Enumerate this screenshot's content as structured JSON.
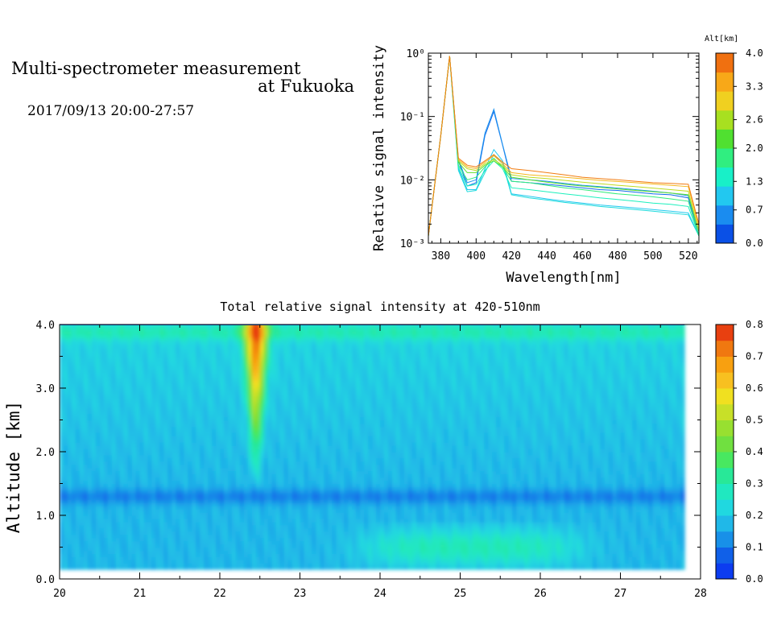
{
  "header": {
    "title_line1": "Multi-spectrometer measurement",
    "title_line2": "at Fukuoka",
    "datetime": "2017/09/13 20:00-27:57"
  },
  "colors": {
    "altitude_scale": [
      "#0a50e6",
      "#1a8cf0",
      "#22c8f0",
      "#18f0c8",
      "#30ee80",
      "#50e030",
      "#a8e020",
      "#f0d020",
      "#f8a818",
      "#f07010"
    ],
    "intensity_scale": [
      "#0c3cf0",
      "#1060e8",
      "#1890e8",
      "#20b8e8",
      "#20d8e0",
      "#20e8c0",
      "#28e898",
      "#48e860",
      "#70e040",
      "#98e030",
      "#c8e028",
      "#f0e020",
      "#f8c020",
      "#f8a010",
      "#f07810",
      "#e84010"
    ]
  },
  "chart_data": [
    {
      "type": "line",
      "xlabel": "Wavelength[nm]",
      "ylabel": "Relative signal intensity",
      "yscale": "log",
      "xlim": [
        373,
        526
      ],
      "ylim": [
        0.001,
        1
      ],
      "xticks": [
        "380",
        "400",
        "420",
        "440",
        "460",
        "480",
        "500",
        "520"
      ],
      "yticks": [
        "10⁻³",
        "10⁻²",
        "10⁻¹",
        "10⁰"
      ],
      "colorbar": {
        "label": "Alt[km]",
        "range": [
          0,
          4
        ],
        "ticks": [
          "0.0",
          "0.7",
          "1.3",
          "2.0",
          "2.6",
          "3.3",
          "4.0"
        ]
      },
      "x": [
        373,
        380,
        385,
        390,
        395,
        400,
        405,
        410,
        415,
        420,
        430,
        440,
        450,
        460,
        470,
        480,
        490,
        500,
        510,
        520,
        526
      ],
      "series": [
        {
          "altitude": 0.2,
          "values": [
            0.0013,
            0.05,
            0.9,
            0.02,
            0.008,
            0.009,
            0.05,
            0.12,
            0.035,
            0.0095,
            0.009,
            0.0085,
            0.008,
            0.0075,
            0.007,
            0.0068,
            0.0064,
            0.006,
            0.0058,
            0.0052,
            0.0013
          ]
        },
        {
          "altitude": 0.5,
          "values": [
            0.0013,
            0.05,
            0.9,
            0.021,
            0.009,
            0.01,
            0.055,
            0.13,
            0.036,
            0.0105,
            0.01,
            0.0095,
            0.0088,
            0.0082,
            0.0078,
            0.0074,
            0.007,
            0.0066,
            0.0062,
            0.0056,
            0.0013
          ]
        },
        {
          "altitude": 0.9,
          "values": [
            0.0013,
            0.05,
            0.9,
            0.015,
            0.007,
            0.007,
            0.015,
            0.03,
            0.02,
            0.006,
            0.0055,
            0.005,
            0.0046,
            0.0043,
            0.004,
            0.0038,
            0.0036,
            0.0034,
            0.0032,
            0.003,
            0.0013
          ]
        },
        {
          "altitude": 1.1,
          "values": [
            0.0013,
            0.05,
            0.9,
            0.014,
            0.0065,
            0.0068,
            0.013,
            0.025,
            0.018,
            0.0058,
            0.0052,
            0.0048,
            0.0044,
            0.0041,
            0.0038,
            0.0036,
            0.0034,
            0.0032,
            0.003,
            0.0028,
            0.0013
          ]
        },
        {
          "altitude": 1.4,
          "values": [
            0.0013,
            0.05,
            0.9,
            0.016,
            0.008,
            0.0085,
            0.014,
            0.02,
            0.015,
            0.0075,
            0.007,
            0.0065,
            0.006,
            0.0056,
            0.0052,
            0.0049,
            0.0046,
            0.0043,
            0.0041,
            0.0038,
            0.0013
          ]
        },
        {
          "altitude": 1.8,
          "values": [
            0.0013,
            0.05,
            0.9,
            0.017,
            0.01,
            0.011,
            0.016,
            0.022,
            0.016,
            0.0095,
            0.009,
            0.0082,
            0.0075,
            0.007,
            0.0065,
            0.006,
            0.0057,
            0.0054,
            0.005,
            0.0046,
            0.0013
          ]
        },
        {
          "altitude": 2.3,
          "values": [
            0.0013,
            0.05,
            0.9,
            0.019,
            0.013,
            0.013,
            0.017,
            0.02,
            0.016,
            0.011,
            0.01,
            0.0092,
            0.0085,
            0.008,
            0.0076,
            0.0072,
            0.0068,
            0.0065,
            0.0062,
            0.0058,
            0.0015
          ]
        },
        {
          "altitude": 2.8,
          "values": [
            0.0013,
            0.05,
            0.9,
            0.02,
            0.015,
            0.014,
            0.018,
            0.021,
            0.017,
            0.012,
            0.011,
            0.0105,
            0.0098,
            0.0092,
            0.0087,
            0.0082,
            0.0078,
            0.0074,
            0.007,
            0.0066,
            0.0016
          ]
        },
        {
          "altitude": 3.4,
          "values": [
            0.0013,
            0.05,
            0.9,
            0.021,
            0.016,
            0.015,
            0.019,
            0.024,
            0.018,
            0.013,
            0.012,
            0.0115,
            0.011,
            0.0104,
            0.0098,
            0.0094,
            0.009,
            0.0086,
            0.0082,
            0.0078,
            0.0018
          ]
        },
        {
          "altitude": 3.9,
          "values": [
            0.0013,
            0.05,
            0.9,
            0.022,
            0.017,
            0.016,
            0.02,
            0.025,
            0.019,
            0.015,
            0.014,
            0.013,
            0.012,
            0.011,
            0.0105,
            0.01,
            0.0095,
            0.009,
            0.0088,
            0.0085,
            0.002
          ]
        }
      ]
    },
    {
      "type": "heatmap",
      "title": "Total relative signal intensity at 420-510nm",
      "xlabel": "",
      "ylabel": "Altitude [km]",
      "xlim": [
        20,
        28
      ],
      "ylim": [
        0,
        4
      ],
      "xticks": [
        "20",
        "21",
        "22",
        "23",
        "24",
        "25",
        "26",
        "27",
        "28"
      ],
      "yticks": [
        "0.0",
        "1.0",
        "2.0",
        "3.0",
        "4.0"
      ],
      "data_range": {
        "time": [
          20,
          27.8
        ],
        "altitude": [
          0.15,
          4.0
        ]
      },
      "colorbar": {
        "range": [
          0,
          0.8
        ],
        "ticks": [
          "0.0",
          "0.1",
          "0.2",
          "0.3",
          "0.4",
          "0.5",
          "0.6",
          "0.7",
          "0.8"
        ]
      },
      "features": [
        {
          "description": "plume",
          "time_center": 22.45,
          "altitude_range": [
            1.5,
            4.0
          ],
          "peak_value": 0.75
        },
        {
          "description": "low layer",
          "altitude": 1.3,
          "value": 0.1
        },
        {
          "description": "lower patch",
          "time_range": [
            23.8,
            26.5
          ],
          "altitude_range": [
            0.2,
            0.8
          ],
          "value": 0.3
        }
      ]
    }
  ]
}
